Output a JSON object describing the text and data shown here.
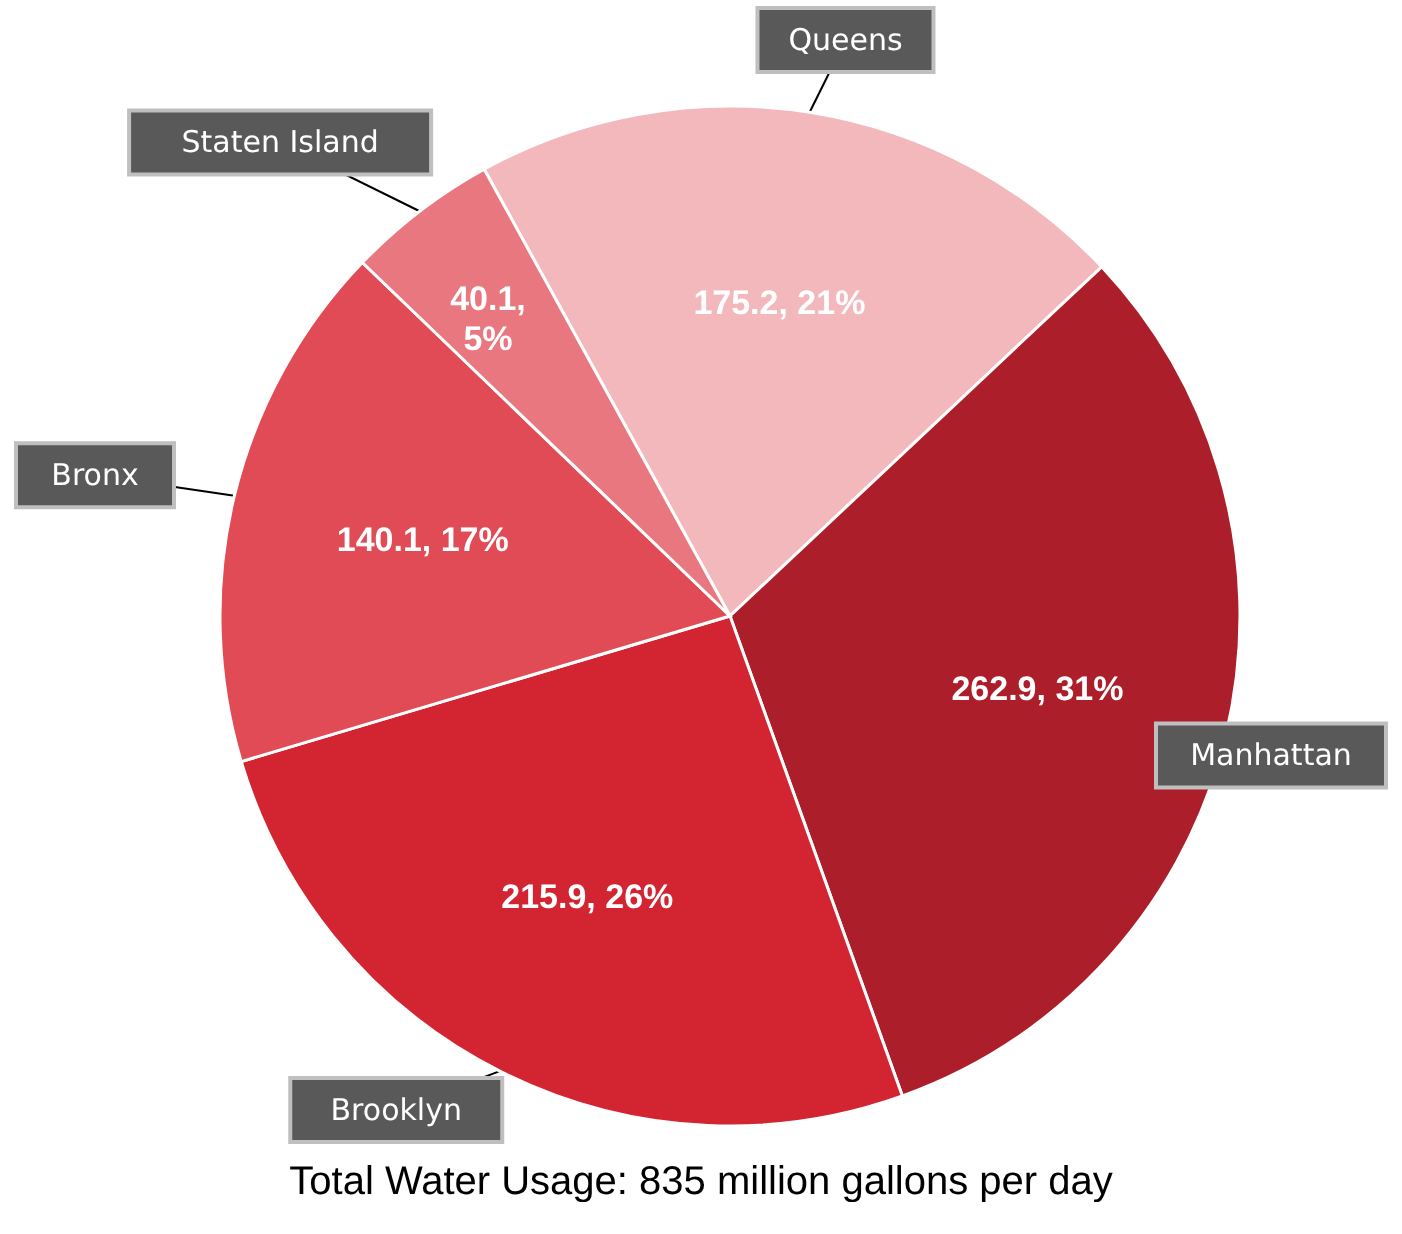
{
  "chart_data": {
    "type": "pie",
    "title": "Total Water Usage: 835 million gallons per day",
    "categories": [
      "Queens",
      "Manhattan",
      "Brooklyn",
      "Bronx",
      "Staten Island"
    ],
    "values": [
      175.2,
      262.9,
      215.9,
      140.1,
      40.1
    ],
    "colors": [
      "#f2b8bc",
      "#ab1e2a",
      "#d32432",
      "#e04b55",
      "#e8777f"
    ],
    "value_labels": [
      "175.2, 21%",
      "262.9, 31%",
      "215.9, 26%",
      "140.1, 17%",
      "40.1, 5%"
    ]
  }
}
